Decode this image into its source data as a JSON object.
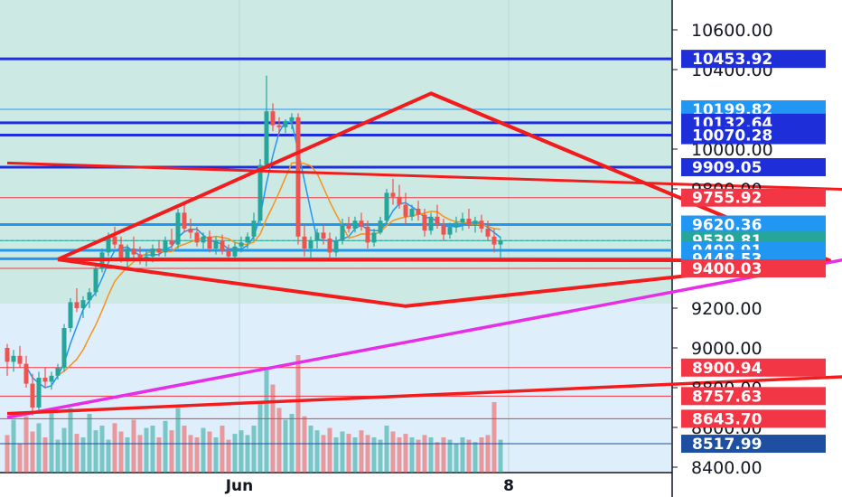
{
  "chart_data": {
    "type": "candlestick",
    "price_axis": {
      "ticks": [
        "10600.00",
        "10400.00",
        "10000.00",
        "9800.00",
        "9200.00",
        "9000.00",
        "8800.00",
        "8600.00",
        "8400.00"
      ],
      "tick_values": [
        10600,
        10400,
        10000,
        9800,
        9200,
        9000,
        8800,
        8600,
        8400
      ],
      "ylim": [
        8370,
        10720
      ]
    },
    "time_axis": {
      "ticks": [
        "Jun",
        "8"
      ]
    },
    "price_tags": [
      {
        "label": "10453.92",
        "value": 10453.92,
        "color": "#1e2fd9"
      },
      {
        "label": "10199.82",
        "value": 10199.82,
        "color": "#2196f3"
      },
      {
        "label": "10132.64",
        "value": 10132.64,
        "color": "#1e2fd9"
      },
      {
        "label": "10070.28",
        "value": 10070.28,
        "color": "#1e2fd9"
      },
      {
        "label": "9909.05",
        "value": 9909.05,
        "color": "#1e2fd9"
      },
      {
        "label": "9755.92",
        "value": 9755.92,
        "color": "#f23645"
      },
      {
        "label": "9620.36",
        "value": 9620.36,
        "color": "#2196f3"
      },
      {
        "label": "9539.81",
        "value": 9539.81,
        "color": "#26a69a"
      },
      {
        "label": "9490.91",
        "value": 9490.91,
        "color": "#2196f3"
      },
      {
        "label": "9448.53",
        "value": 9448.53,
        "color": "#2196f3"
      },
      {
        "label": "9400.03",
        "value": 9400.03,
        "color": "#f23645"
      },
      {
        "label": "8900.94",
        "value": 8900.94,
        "color": "#f23645"
      },
      {
        "label": "8757.63",
        "value": 8757.63,
        "color": "#f23645"
      },
      {
        "label": "8643.70",
        "value": 8643.7,
        "color": "#f23645"
      },
      {
        "label": "8517.99",
        "value": 8517.99,
        "color": "#1e4fa0"
      }
    ],
    "colors": {
      "up": "#26a69a",
      "down": "#ef5350",
      "triangle": "#f21c1c",
      "support_line": "#e62ee6",
      "ma_fast": "#2196f3",
      "ma_slow": "#f7931a",
      "zone_upper": "#cde9e4",
      "zone_lower": "#deeefb"
    },
    "candles": [
      [
        9000,
        9020,
        8860,
        8930
      ],
      [
        8930,
        8990,
        8880,
        8960
      ],
      [
        8960,
        9010,
        8900,
        8920
      ],
      [
        8920,
        8960,
        8800,
        8820
      ],
      [
        8820,
        8870,
        8660,
        8700
      ],
      [
        8700,
        8880,
        8680,
        8850
      ],
      [
        8850,
        8900,
        8800,
        8830
      ],
      [
        8830,
        8880,
        8790,
        8860
      ],
      [
        8860,
        8920,
        8840,
        8900
      ],
      [
        8900,
        9120,
        8880,
        9100
      ],
      [
        9100,
        9250,
        9080,
        9230
      ],
      [
        9230,
        9300,
        9180,
        9200
      ],
      [
        9200,
        9260,
        9150,
        9240
      ],
      [
        9240,
        9300,
        9200,
        9280
      ],
      [
        9280,
        9420,
        9260,
        9400
      ],
      [
        9400,
        9500,
        9380,
        9480
      ],
      [
        9480,
        9580,
        9460,
        9560
      ],
      [
        9560,
        9610,
        9500,
        9520
      ],
      [
        9520,
        9560,
        9430,
        9450
      ],
      [
        9450,
        9520,
        9400,
        9500
      ],
      [
        9500,
        9560,
        9450,
        9470
      ],
      [
        9470,
        9510,
        9420,
        9440
      ],
      [
        9440,
        9490,
        9410,
        9460
      ],
      [
        9460,
        9520,
        9430,
        9500
      ],
      [
        9500,
        9540,
        9460,
        9480
      ],
      [
        9480,
        9560,
        9460,
        9540
      ],
      [
        9540,
        9600,
        9500,
        9520
      ],
      [
        9520,
        9700,
        9500,
        9680
      ],
      [
        9680,
        9720,
        9580,
        9600
      ],
      [
        9600,
        9650,
        9550,
        9580
      ],
      [
        9580,
        9610,
        9510,
        9530
      ],
      [
        9530,
        9580,
        9500,
        9560
      ],
      [
        9560,
        9590,
        9480,
        9500
      ],
      [
        9500,
        9560,
        9470,
        9540
      ],
      [
        9540,
        9570,
        9470,
        9490
      ],
      [
        9490,
        9520,
        9440,
        9460
      ],
      [
        9460,
        9530,
        9440,
        9510
      ],
      [
        9510,
        9560,
        9480,
        9530
      ],
      [
        9530,
        9580,
        9500,
        9560
      ],
      [
        9560,
        9680,
        9540,
        9640
      ],
      [
        9640,
        9950,
        9620,
        9920
      ],
      [
        9920,
        10370,
        9900,
        10190
      ],
      [
        10190,
        10230,
        10090,
        10120
      ],
      [
        10120,
        10160,
        10070,
        10110
      ],
      [
        10110,
        10150,
        10080,
        10140
      ],
      [
        10140,
        10180,
        10100,
        10160
      ],
      [
        10160,
        10180,
        9520,
        9560
      ],
      [
        9560,
        9620,
        9460,
        9500
      ],
      [
        9500,
        9560,
        9440,
        9540
      ],
      [
        9540,
        9600,
        9500,
        9580
      ],
      [
        9580,
        9620,
        9520,
        9550
      ],
      [
        9550,
        9580,
        9450,
        9480
      ],
      [
        9480,
        9560,
        9460,
        9540
      ],
      [
        9540,
        9650,
        9520,
        9620
      ],
      [
        9620,
        9660,
        9580,
        9600
      ],
      [
        9600,
        9660,
        9580,
        9640
      ],
      [
        9640,
        9680,
        9590,
        9610
      ],
      [
        9610,
        9640,
        9500,
        9530
      ],
      [
        9530,
        9600,
        9510,
        9580
      ],
      [
        9580,
        9660,
        9570,
        9640
      ],
      [
        9640,
        9800,
        9620,
        9780
      ],
      [
        9780,
        9850,
        9720,
        9760
      ],
      [
        9760,
        9820,
        9700,
        9720
      ],
      [
        9720,
        9780,
        9620,
        9660
      ],
      [
        9660,
        9720,
        9640,
        9700
      ],
      [
        9700,
        9740,
        9640,
        9670
      ],
      [
        9670,
        9700,
        9560,
        9590
      ],
      [
        9590,
        9680,
        9570,
        9660
      ],
      [
        9660,
        9720,
        9600,
        9620
      ],
      [
        9620,
        9650,
        9540,
        9570
      ],
      [
        9570,
        9630,
        9550,
        9610
      ],
      [
        9610,
        9660,
        9580,
        9630
      ],
      [
        9630,
        9680,
        9590,
        9650
      ],
      [
        9650,
        9700,
        9600,
        9620
      ],
      [
        9620,
        9660,
        9580,
        9640
      ],
      [
        9640,
        9670,
        9580,
        9600
      ],
      [
        9600,
        9640,
        9540,
        9560
      ],
      [
        9560,
        9600,
        9480,
        9520
      ],
      [
        9520,
        9560,
        9440,
        9540
      ]
    ],
    "volumes": [
      0.32,
      0.45,
      0.25,
      0.48,
      0.35,
      0.42,
      0.3,
      0.52,
      0.28,
      0.38,
      0.55,
      0.33,
      0.3,
      0.5,
      0.36,
      0.4,
      0.28,
      0.42,
      0.35,
      0.3,
      0.45,
      0.32,
      0.38,
      0.4,
      0.3,
      0.44,
      0.36,
      0.55,
      0.4,
      0.32,
      0.3,
      0.38,
      0.35,
      0.3,
      0.4,
      0.28,
      0.33,
      0.36,
      0.32,
      0.4,
      0.6,
      0.9,
      0.75,
      0.55,
      0.45,
      0.5,
      1.0,
      0.48,
      0.4,
      0.36,
      0.32,
      0.38,
      0.3,
      0.35,
      0.33,
      0.3,
      0.36,
      0.32,
      0.3,
      0.28,
      0.4,
      0.35,
      0.3,
      0.33,
      0.3,
      0.28,
      0.32,
      0.3,
      0.26,
      0.3,
      0.28,
      0.25,
      0.3,
      0.28,
      0.26,
      0.3,
      0.32,
      0.6,
      0.28
    ],
    "triangle": [
      [
        8,
        9445
      ],
      [
        67,
        10280
      ],
      [
        130,
        9440
      ],
      [
        8,
        9445
      ]
    ],
    "triangle_right": [
      [
        67,
        10280
      ],
      [
        130,
        9440
      ],
      [
        63,
        9210
      ],
      [
        8,
        9445
      ]
    ],
    "descending_line": [
      [
        0,
        9930
      ],
      [
        150,
        9780
      ]
    ],
    "support_line": [
      [
        0,
        8650
      ],
      [
        150,
        9550
      ]
    ],
    "lower_trendline": [
      [
        0,
        8670
      ],
      [
        150,
        8880
      ]
    ],
    "reference_lines": [
      {
        "value": 10453.92,
        "color": "#1e2fd9",
        "width": 3
      },
      {
        "value": 10199.82,
        "color": "#2196f3",
        "width": 1
      },
      {
        "value": 10132.64,
        "color": "#1e2fd9",
        "width": 3
      },
      {
        "value": 10070.28,
        "color": "#1e2fd9",
        "width": 3
      },
      {
        "value": 9909.05,
        "color": "#1e2fd9",
        "width": 3
      },
      {
        "value": 9755.92,
        "color": "#f23645",
        "width": 1
      },
      {
        "value": 9620.36,
        "color": "#2196f3",
        "width": 3
      },
      {
        "value": 9539.81,
        "color": "#26a69a",
        "width": 1
      },
      {
        "value": 9490.91,
        "color": "#2196f3",
        "width": 3
      },
      {
        "value": 9448.53,
        "color": "#2196f3",
        "width": 3
      },
      {
        "value": 9400.03,
        "color": "#f23645",
        "width": 1
      },
      {
        "value": 8900.94,
        "color": "#f23645",
        "width": 1
      },
      {
        "value": 8757.63,
        "color": "#f23645",
        "width": 1
      },
      {
        "value": 8643.7,
        "color": "#f23645",
        "width": 1
      },
      {
        "value": 8517.99,
        "color": "#1e4fa0",
        "width": 1
      }
    ],
    "zone_boundary_value": 9222,
    "grid": true,
    "legend": "none"
  }
}
